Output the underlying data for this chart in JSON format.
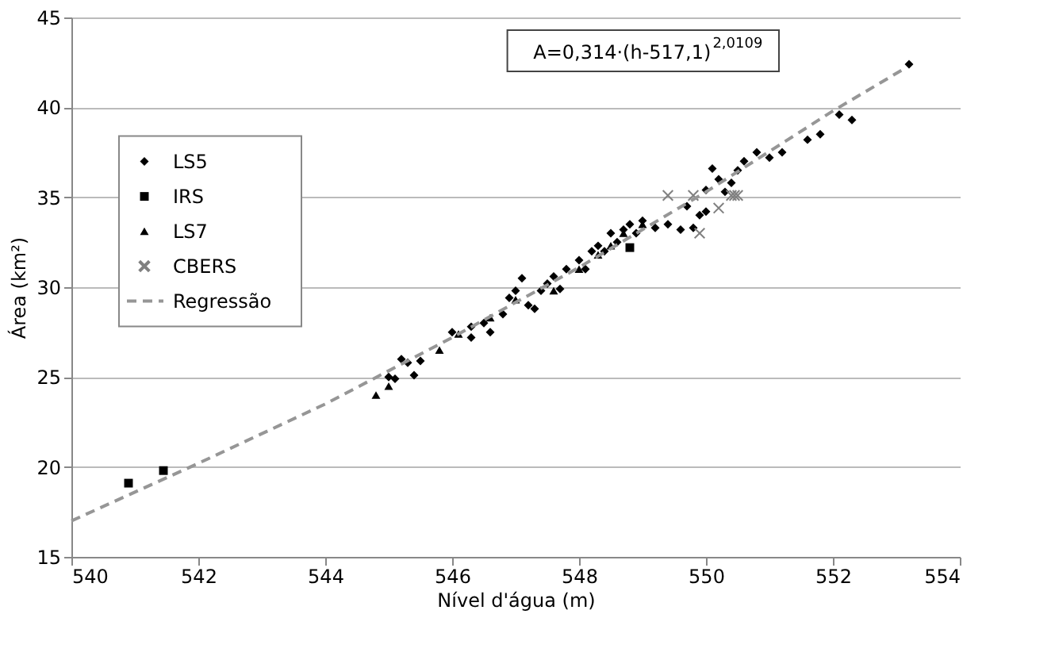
{
  "chart_data": {
    "type": "scatter",
    "xlabel": "Nível d'água (m)",
    "ylabel": "Área (km²)",
    "xlim": [
      540,
      554
    ],
    "xticks": [
      540,
      542,
      544,
      546,
      548,
      550,
      552,
      554
    ],
    "ylim": [
      15,
      45
    ],
    "yticks": [
      15,
      20,
      25,
      30,
      35,
      40,
      45
    ],
    "grid": "y",
    "legend": "left",
    "annotations": [
      "A=0,314·(h-517,1)$^{2,0109}$"
    ],
    "series": [
      {
        "name": "LS5",
        "color": "#000000",
        "marker": "diamond",
        "x": [
          545.0,
          545.1,
          545.2,
          545.3,
          545.4,
          545.5,
          546.0,
          546.3,
          546.5,
          546.6,
          546.8,
          546.9,
          547.0,
          547.1,
          547.2,
          547.4,
          547.5,
          547.6,
          547.7,
          547.8,
          548.0,
          548.1,
          548.2,
          548.3,
          548.4,
          548.5,
          548.6,
          548.7,
          548.8,
          548.9,
          549.0,
          549.2,
          549.4,
          549.6,
          549.7,
          549.9,
          550.0,
          550.1,
          550.2,
          550.3,
          550.4,
          550.5,
          550.6,
          550.8,
          551.0,
          551.2,
          551.6,
          551.8,
          552.1,
          552.3,
          553.2,
          549.8,
          550.0,
          546.3,
          547.3
        ],
        "values": [
          25.0,
          24.9,
          26.0,
          25.8,
          25.1,
          25.9,
          27.5,
          27.8,
          28.0,
          27.5,
          28.5,
          29.4,
          29.8,
          30.5,
          29.0,
          29.8,
          30.2,
          30.6,
          29.9,
          31.0,
          31.5,
          31.0,
          32.0,
          32.3,
          32.0,
          33.0,
          32.5,
          33.2,
          33.5,
          33.0,
          33.7,
          33.3,
          33.5,
          33.2,
          34.5,
          34.0,
          35.4,
          36.6,
          36.0,
          35.3,
          35.8,
          36.5,
          37.0,
          37.5,
          37.2,
          37.5,
          38.2,
          38.5,
          39.6,
          39.3,
          42.4,
          33.3,
          34.2,
          27.2,
          28.8
        ]
      },
      {
        "name": "IRS",
        "color": "#000000",
        "marker": "square",
        "x": [
          540.9,
          541.45,
          548.8
        ],
        "values": [
          19.1,
          19.8,
          32.2
        ]
      },
      {
        "name": "LS7",
        "color": "#000000",
        "marker": "triangle",
        "x": [
          544.8,
          545.0,
          545.8,
          546.1,
          546.6,
          547.0,
          547.6,
          548.0,
          548.3,
          548.5,
          548.7,
          549.0
        ],
        "values": [
          24.0,
          24.5,
          26.5,
          27.4,
          28.3,
          29.3,
          29.8,
          31.0,
          31.8,
          32.3,
          33.0,
          33.5
        ]
      },
      {
        "name": "CBERS",
        "color": "#808080",
        "marker": "cross",
        "x": [
          549.4,
          549.8,
          549.9,
          550.2,
          550.4,
          550.45,
          550.5
        ],
        "values": [
          35.1,
          35.1,
          33.0,
          34.4,
          35.1,
          35.1,
          35.1
        ]
      },
      {
        "name": "Regressão",
        "type": "line",
        "color": "#969696",
        "marker": "none",
        "line_style": "dashed",
        "x": [
          540,
          542,
          544,
          546,
          548,
          550,
          552,
          553.1
        ],
        "values": [
          17.0,
          20.2,
          23.5,
          27.2,
          31.1,
          35.3,
          39.8,
          42.1
        ]
      }
    ]
  }
}
